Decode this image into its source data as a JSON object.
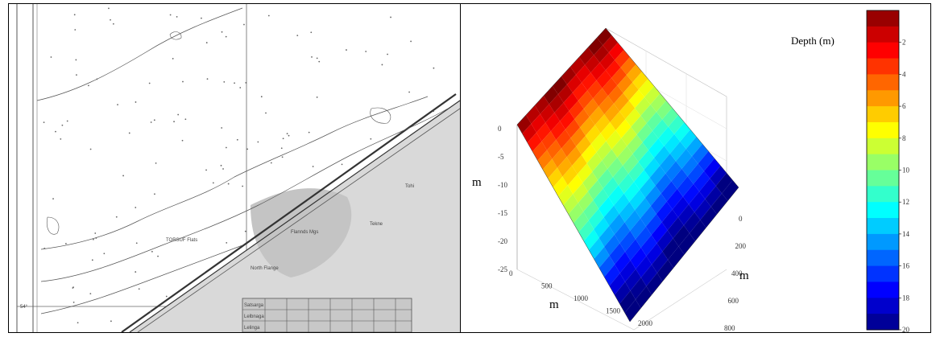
{
  "map": {
    "labels": [
      "TORSUF Flats",
      "Flannds Mgs",
      "North Flange",
      "Tekne",
      "Tohi",
      "54°"
    ],
    "inset_labels": [
      "Satsarga",
      "Lelbnaga",
      "Lelinga"
    ]
  },
  "chart_data": {
    "type": "surface3d",
    "title": "",
    "zlabel": "m",
    "xlabel": "m",
    "ylabel": "m",
    "x_ticks": [
      "0",
      "500",
      "1000",
      "1500",
      "2000"
    ],
    "y_ticks": [
      "0",
      "200",
      "400",
      "600",
      "800"
    ],
    "z_ticks": [
      "0",
      "-5",
      "-10",
      "-15",
      "-20",
      "-25"
    ],
    "xlim": [
      0,
      2000
    ],
    "ylim": [
      0,
      800
    ],
    "zlim": [
      -25,
      0
    ],
    "colormap": "jet",
    "colorbar": {
      "label": "Depth (m)",
      "min": 0,
      "max": 20,
      "ticks": [
        "2",
        "4",
        "6",
        "8",
        "10",
        "12",
        "14",
        "16",
        "18",
        "20"
      ],
      "tick_values": [
        2,
        4,
        6,
        8,
        10,
        12,
        14,
        16,
        18,
        20
      ]
    },
    "depth_bands": [
      0,
      1,
      2,
      3,
      4,
      5,
      6,
      7,
      8,
      9,
      10,
      11,
      12,
      13,
      14,
      15,
      16,
      17,
      18,
      19,
      20
    ]
  }
}
